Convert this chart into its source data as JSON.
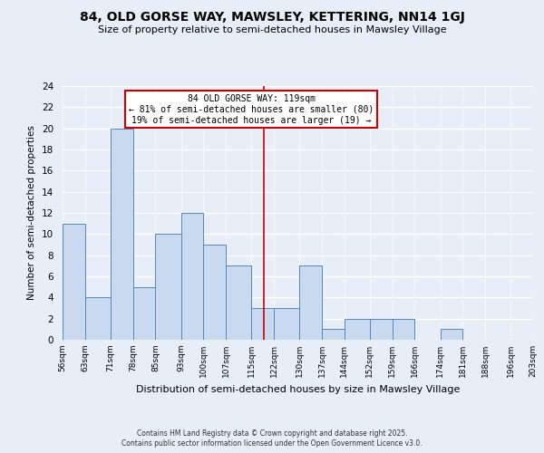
{
  "title": "84, OLD GORSE WAY, MAWSLEY, KETTERING, NN14 1GJ",
  "subtitle": "Size of property relative to semi-detached houses in Mawsley Village",
  "xlabel": "Distribution of semi-detached houses by size in Mawsley Village",
  "ylabel": "Number of semi-detached properties",
  "bin_edges": [
    56,
    63,
    71,
    78,
    85,
    93,
    100,
    107,
    115,
    122,
    130,
    137,
    144,
    152,
    159,
    166,
    174,
    181,
    188,
    196,
    203
  ],
  "bin_counts": [
    11,
    4,
    20,
    5,
    10,
    12,
    9,
    7,
    3,
    3,
    7,
    1,
    2,
    2,
    2,
    0,
    1,
    0,
    0,
    0
  ],
  "bar_color": "#c8d9f0",
  "bar_edge_color": "#5588bb",
  "property_line_x": 119,
  "annotation_title": "84 OLD GORSE WAY: 119sqm",
  "annotation_line1": "← 81% of semi-detached houses are smaller (80)",
  "annotation_line2": "19% of semi-detached houses are larger (19) →",
  "annotation_box_color": "#ffffff",
  "annotation_box_edge_color": "#cc0000",
  "vline_color": "#cc0000",
  "ylim": [
    0,
    24
  ],
  "yticks": [
    0,
    2,
    4,
    6,
    8,
    10,
    12,
    14,
    16,
    18,
    20,
    22,
    24
  ],
  "background_color": "#e8eef8",
  "plot_background_color": "#e8eef8",
  "footer_line1": "Contains HM Land Registry data © Crown copyright and database right 2025.",
  "footer_line2": "Contains public sector information licensed under the Open Government Licence v3.0.",
  "tick_labels": [
    "56sqm",
    "63sqm",
    "71sqm",
    "78sqm",
    "85sqm",
    "93sqm",
    "100sqm",
    "107sqm",
    "115sqm",
    "122sqm",
    "130sqm",
    "137sqm",
    "144sqm",
    "152sqm",
    "159sqm",
    "166sqm",
    "174sqm",
    "181sqm",
    "188sqm",
    "196sqm",
    "203sqm"
  ]
}
